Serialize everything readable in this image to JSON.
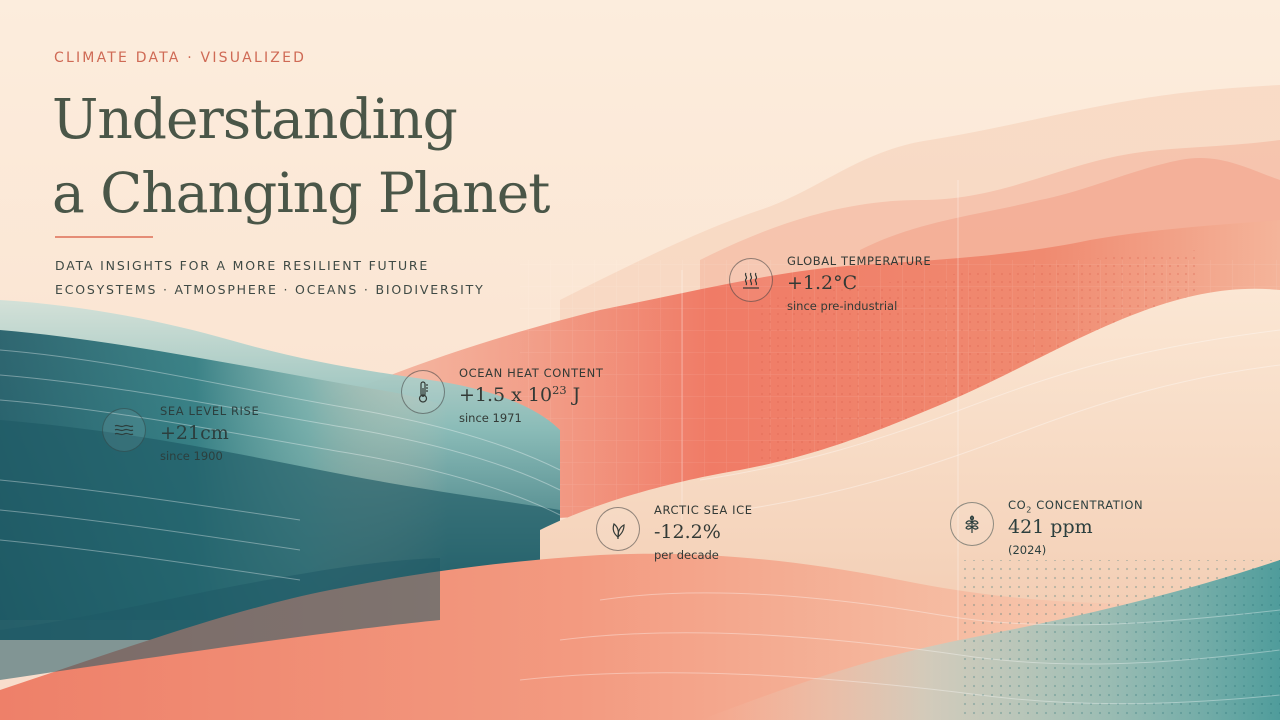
{
  "header": {
    "eyebrow": "CLIMATE DATA · VISUALIZED",
    "title_line1": "Understanding",
    "title_line2": "a Changing Planet",
    "tagline1": "DATA INSIGHTS FOR A MORE RESILIENT FUTURE",
    "tagline2": "ECOSYSTEMS · ATMOSPHERE · OCEANS · BIODIVERSITY"
  },
  "stats": {
    "sea_level": {
      "label": "SEA LEVEL RISE",
      "value": "+21cm",
      "sub": "since 1900",
      "icon": "waves-icon"
    },
    "ocean_heat": {
      "label": "OCEAN HEAT CONTENT",
      "value_prefix": "+1.5 x 10",
      "value_exp": "23",
      "value_suffix": " J",
      "sub": "since 1971",
      "icon": "thermometer-icon"
    },
    "global_temp": {
      "label": "GLOBAL TEMPERATURE",
      "value": "+1.2°C",
      "sub": "since pre-industrial",
      "icon": "heat-icon"
    },
    "arctic_ice": {
      "label": "ARCTIC SEA ICE",
      "value": "-12.2%",
      "sub": "per decade",
      "icon": "leaves-icon"
    },
    "co2": {
      "label_prefix": "CO",
      "label_sub": "2",
      "label_suffix": " CONCENTRATION",
      "value": "421 ppm",
      "sub": "(2024)",
      "icon": "plant-icon"
    }
  },
  "colors": {
    "background": "#fbe9d9",
    "coral": "#f0826a",
    "teal": "#2f7a80",
    "deep_teal": "#1f5e68",
    "sand": "#f6d9bf",
    "title_text": "#4a5648",
    "accent": "#cf6a55"
  }
}
